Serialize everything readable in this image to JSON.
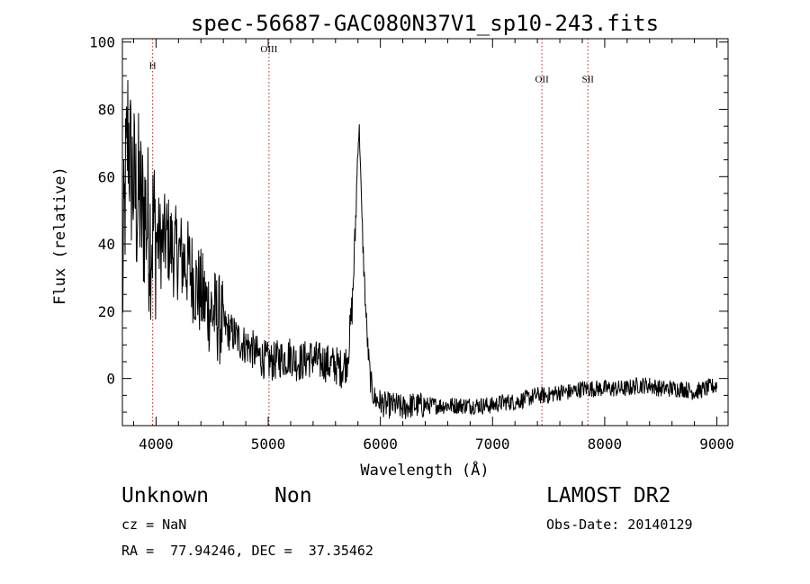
{
  "chart_data": {
    "type": "line",
    "title": "spec-56687-GAC080N37V1_sp10-243.fits",
    "xlabel": "Wavelength (Å)",
    "ylabel": "Flux (relative)",
    "xlim": [
      3700,
      9100
    ],
    "ylim": [
      -14,
      101
    ],
    "x_ticks": [
      4000,
      5000,
      6000,
      7000,
      8000,
      9000
    ],
    "y_ticks": [
      0,
      20,
      40,
      60,
      80,
      100
    ],
    "x_tick_labels": [
      "4000",
      "5000",
      "6000",
      "7000",
      "8000",
      "9000"
    ],
    "y_tick_labels": [
      "0",
      "20",
      "40",
      "60",
      "80",
      "100"
    ],
    "grid": false,
    "series": [
      {
        "x": [
          3700,
          3725,
          3750,
          3775,
          3800,
          3825,
          3850,
          3875,
          3900,
          3925,
          3950,
          3975,
          4000,
          4050,
          4100,
          4150,
          4200,
          4250,
          4300,
          4350,
          4400,
          4450,
          4500,
          4550,
          4600,
          4650,
          4700,
          4750,
          4800,
          4850,
          4900,
          4950,
          5000,
          5050,
          5100,
          5150,
          5200,
          5250,
          5300,
          5350,
          5400,
          5450,
          5500,
          5550,
          5600,
          5650,
          5700,
          5725,
          5750,
          5775,
          5790,
          5800,
          5810,
          5820,
          5830,
          5850,
          5870,
          5890,
          5910,
          5930,
          5950,
          6000,
          6050,
          6100,
          6150,
          6200,
          6250,
          6300,
          6350,
          6400,
          6500,
          6600,
          6700,
          6800,
          6900,
          7000,
          7100,
          7200,
          7300,
          7400,
          7500,
          7600,
          7700,
          7800,
          7900,
          8000,
          8100,
          8200,
          8300,
          8400,
          8500,
          8600,
          8700,
          8800,
          8900,
          9000
        ],
        "y": [
          25,
          55,
          75,
          62,
          58,
          52,
          55,
          48,
          50,
          46,
          43,
          45,
          42,
          40,
          42,
          38,
          37,
          35,
          33,
          28,
          25,
          22,
          20,
          18,
          16,
          14,
          13,
          11,
          10,
          9,
          7,
          6,
          5,
          5,
          6,
          6,
          7,
          5,
          5,
          6,
          6,
          5,
          5,
          4,
          4,
          3,
          5,
          12,
          22,
          42,
          58,
          70,
          74,
          68,
          52,
          35,
          20,
          8,
          0,
          -4,
          -6,
          -7,
          -8,
          -8,
          -8,
          -9,
          -8,
          -8,
          -8,
          -8,
          -8,
          -8,
          -8,
          -8,
          -8,
          -8,
          -7,
          -7,
          -6,
          -5,
          -5,
          -4,
          -4,
          -3,
          -3,
          -3,
          -3,
          -3,
          -2,
          -2,
          -3,
          -3,
          -3,
          -4,
          -3,
          -2
        ]
      }
    ],
    "annotations": [
      {
        "label": "H",
        "x": 3970,
        "y": 92
      },
      {
        "label": "OIII",
        "x": 5007,
        "y": 97
      },
      {
        "label": "OII",
        "x": 7440,
        "y": 88
      },
      {
        "label": "SII",
        "x": 7850,
        "y": 88
      }
    ],
    "line_color": "#000000",
    "marker_color": "#b22222"
  },
  "info": {
    "class": "Unknown",
    "subclass": "Non",
    "cz": "cz = NaN",
    "survey": "LAMOST DR2",
    "obsdate": "Obs-Date: 20140129",
    "radec": "RA =  77.94246, DEC =  37.35462"
  }
}
